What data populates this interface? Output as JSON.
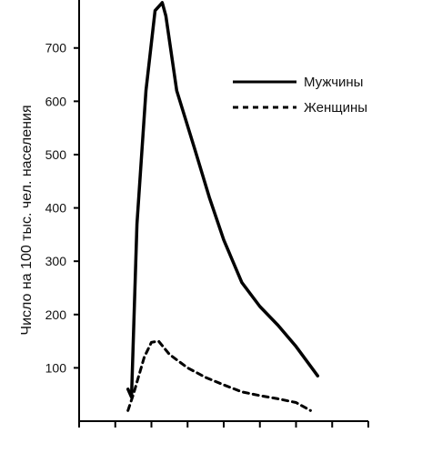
{
  "chart_data": {
    "type": "line",
    "title": "",
    "xlabel": "",
    "ylabel": "Число на 100 тыс. чел. населения",
    "ylim": [
      0,
      790
    ],
    "yticks": [
      100,
      200,
      300,
      400,
      500,
      600,
      700
    ],
    "xlim": [
      0,
      8
    ],
    "x_tick_count": 8,
    "grid": false,
    "legend_position": "top-right",
    "series": [
      {
        "name": "Мужчины",
        "style": "solid",
        "color": "#000000",
        "points": [
          [
            1.35,
            60
          ],
          [
            1.45,
            45
          ],
          [
            1.6,
            370
          ],
          [
            1.85,
            620
          ],
          [
            2.1,
            770
          ],
          [
            2.3,
            785
          ],
          [
            2.4,
            760
          ],
          [
            2.7,
            620
          ],
          [
            3.2,
            510
          ],
          [
            3.6,
            420
          ],
          [
            4.0,
            340
          ],
          [
            4.5,
            260
          ],
          [
            5.0,
            215
          ],
          [
            5.5,
            180
          ],
          [
            6.0,
            140
          ],
          [
            6.6,
            85
          ]
        ]
      },
      {
        "name": "Женщины",
        "style": "dashed",
        "color": "#000000",
        "points": [
          [
            1.35,
            20
          ],
          [
            1.5,
            50
          ],
          [
            1.65,
            85
          ],
          [
            1.8,
            120
          ],
          [
            2.0,
            148
          ],
          [
            2.2,
            150
          ],
          [
            2.5,
            125
          ],
          [
            3.0,
            100
          ],
          [
            3.5,
            82
          ],
          [
            4.0,
            68
          ],
          [
            4.5,
            55
          ],
          [
            5.0,
            48
          ],
          [
            5.5,
            42
          ],
          [
            6.0,
            35
          ],
          [
            6.4,
            20
          ]
        ]
      }
    ]
  }
}
